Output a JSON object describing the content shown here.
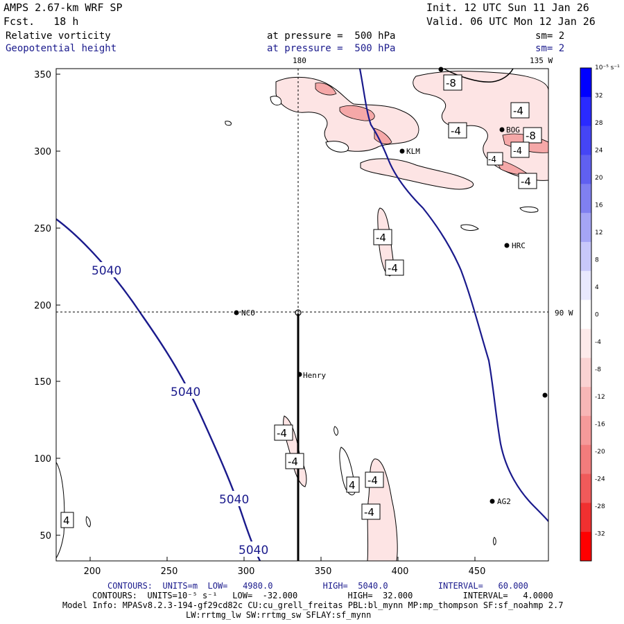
{
  "header": {
    "model": "AMPS 2.67-km WRF SP",
    "init": "Init. 12 UTC Sun 11 Jan 26",
    "fcst": "Fcst.   18 h",
    "valid": "Valid. 06 UTC Mon 12 Jan 26",
    "field1": "Relative vorticity",
    "field1_level": "at pressure =  500 hPa",
    "field1_sm": "sm= 2",
    "field2": "Geopotential height",
    "field2_level": "at pressure =  500 hPa",
    "field2_sm": "sm= 2"
  },
  "map": {
    "lon_top_180": "180",
    "lon_top_135w": "135 W",
    "lon_right_90w": "90 W",
    "x_ticks": [
      "200",
      "250",
      "300",
      "350",
      "400",
      "450"
    ],
    "y_ticks": [
      "50",
      "100",
      "150",
      "200",
      "250",
      "300",
      "350"
    ],
    "stations": [
      {
        "name": "NCO"
      },
      {
        "name": "Henry"
      },
      {
        "name": "HRC"
      },
      {
        "name": "AG2"
      },
      {
        "name": "BOG"
      },
      {
        "name": "KLM"
      }
    ],
    "height_labels": [
      "5040",
      "5040",
      "5040",
      "5040"
    ],
    "vort_labels": [
      "-8",
      "-4",
      "-4",
      "-8",
      "-4",
      "-4",
      "-4",
      "-4",
      "-4",
      "-4",
      "4",
      "-4",
      "-4",
      "4",
      "-4"
    ]
  },
  "colorbar": {
    "units": "10⁻⁵ s⁻¹",
    "labels": [
      "32",
      "28",
      "24",
      "20",
      "16",
      "12",
      "8",
      "4",
      "0",
      "-4",
      "-8",
      "-12",
      "-16",
      "-20",
      "-24",
      "-28",
      "-32"
    ],
    "colors": [
      "#0000ff",
      "#2a2aff",
      "#4545f5",
      "#6060f0",
      "#8080f0",
      "#a5a5f5",
      "#c8c8fa",
      "#e8e8fd",
      "#ffffff",
      "#fdeaea",
      "#fad2d2",
      "#f7b6b6",
      "#f59a9a",
      "#f27c7c",
      "#f05a5a",
      "#f03030",
      "#ff0000"
    ]
  },
  "footer": {
    "line1": "CONTOURS:  UNITS=m  LOW=   4980.0          HIGH=  5040.0          INTERVAL=   60.000",
    "line2": "CONTOURS:  UNITS=10⁻⁵ s⁻¹   LOW=  -32.000          HIGH=  32.000          INTERVAL=   4.0000",
    "line3": "Model Info: MPASv8.2.3-194-gf29cd82c CU:cu_grell_freitas PBL:bl_mynn MP:mp_thompson SF:sf_noahmp 2.7",
    "line4": "LW:rrtmg_lw SW:rrtmg_sw SFLAY:sf_mynn"
  }
}
